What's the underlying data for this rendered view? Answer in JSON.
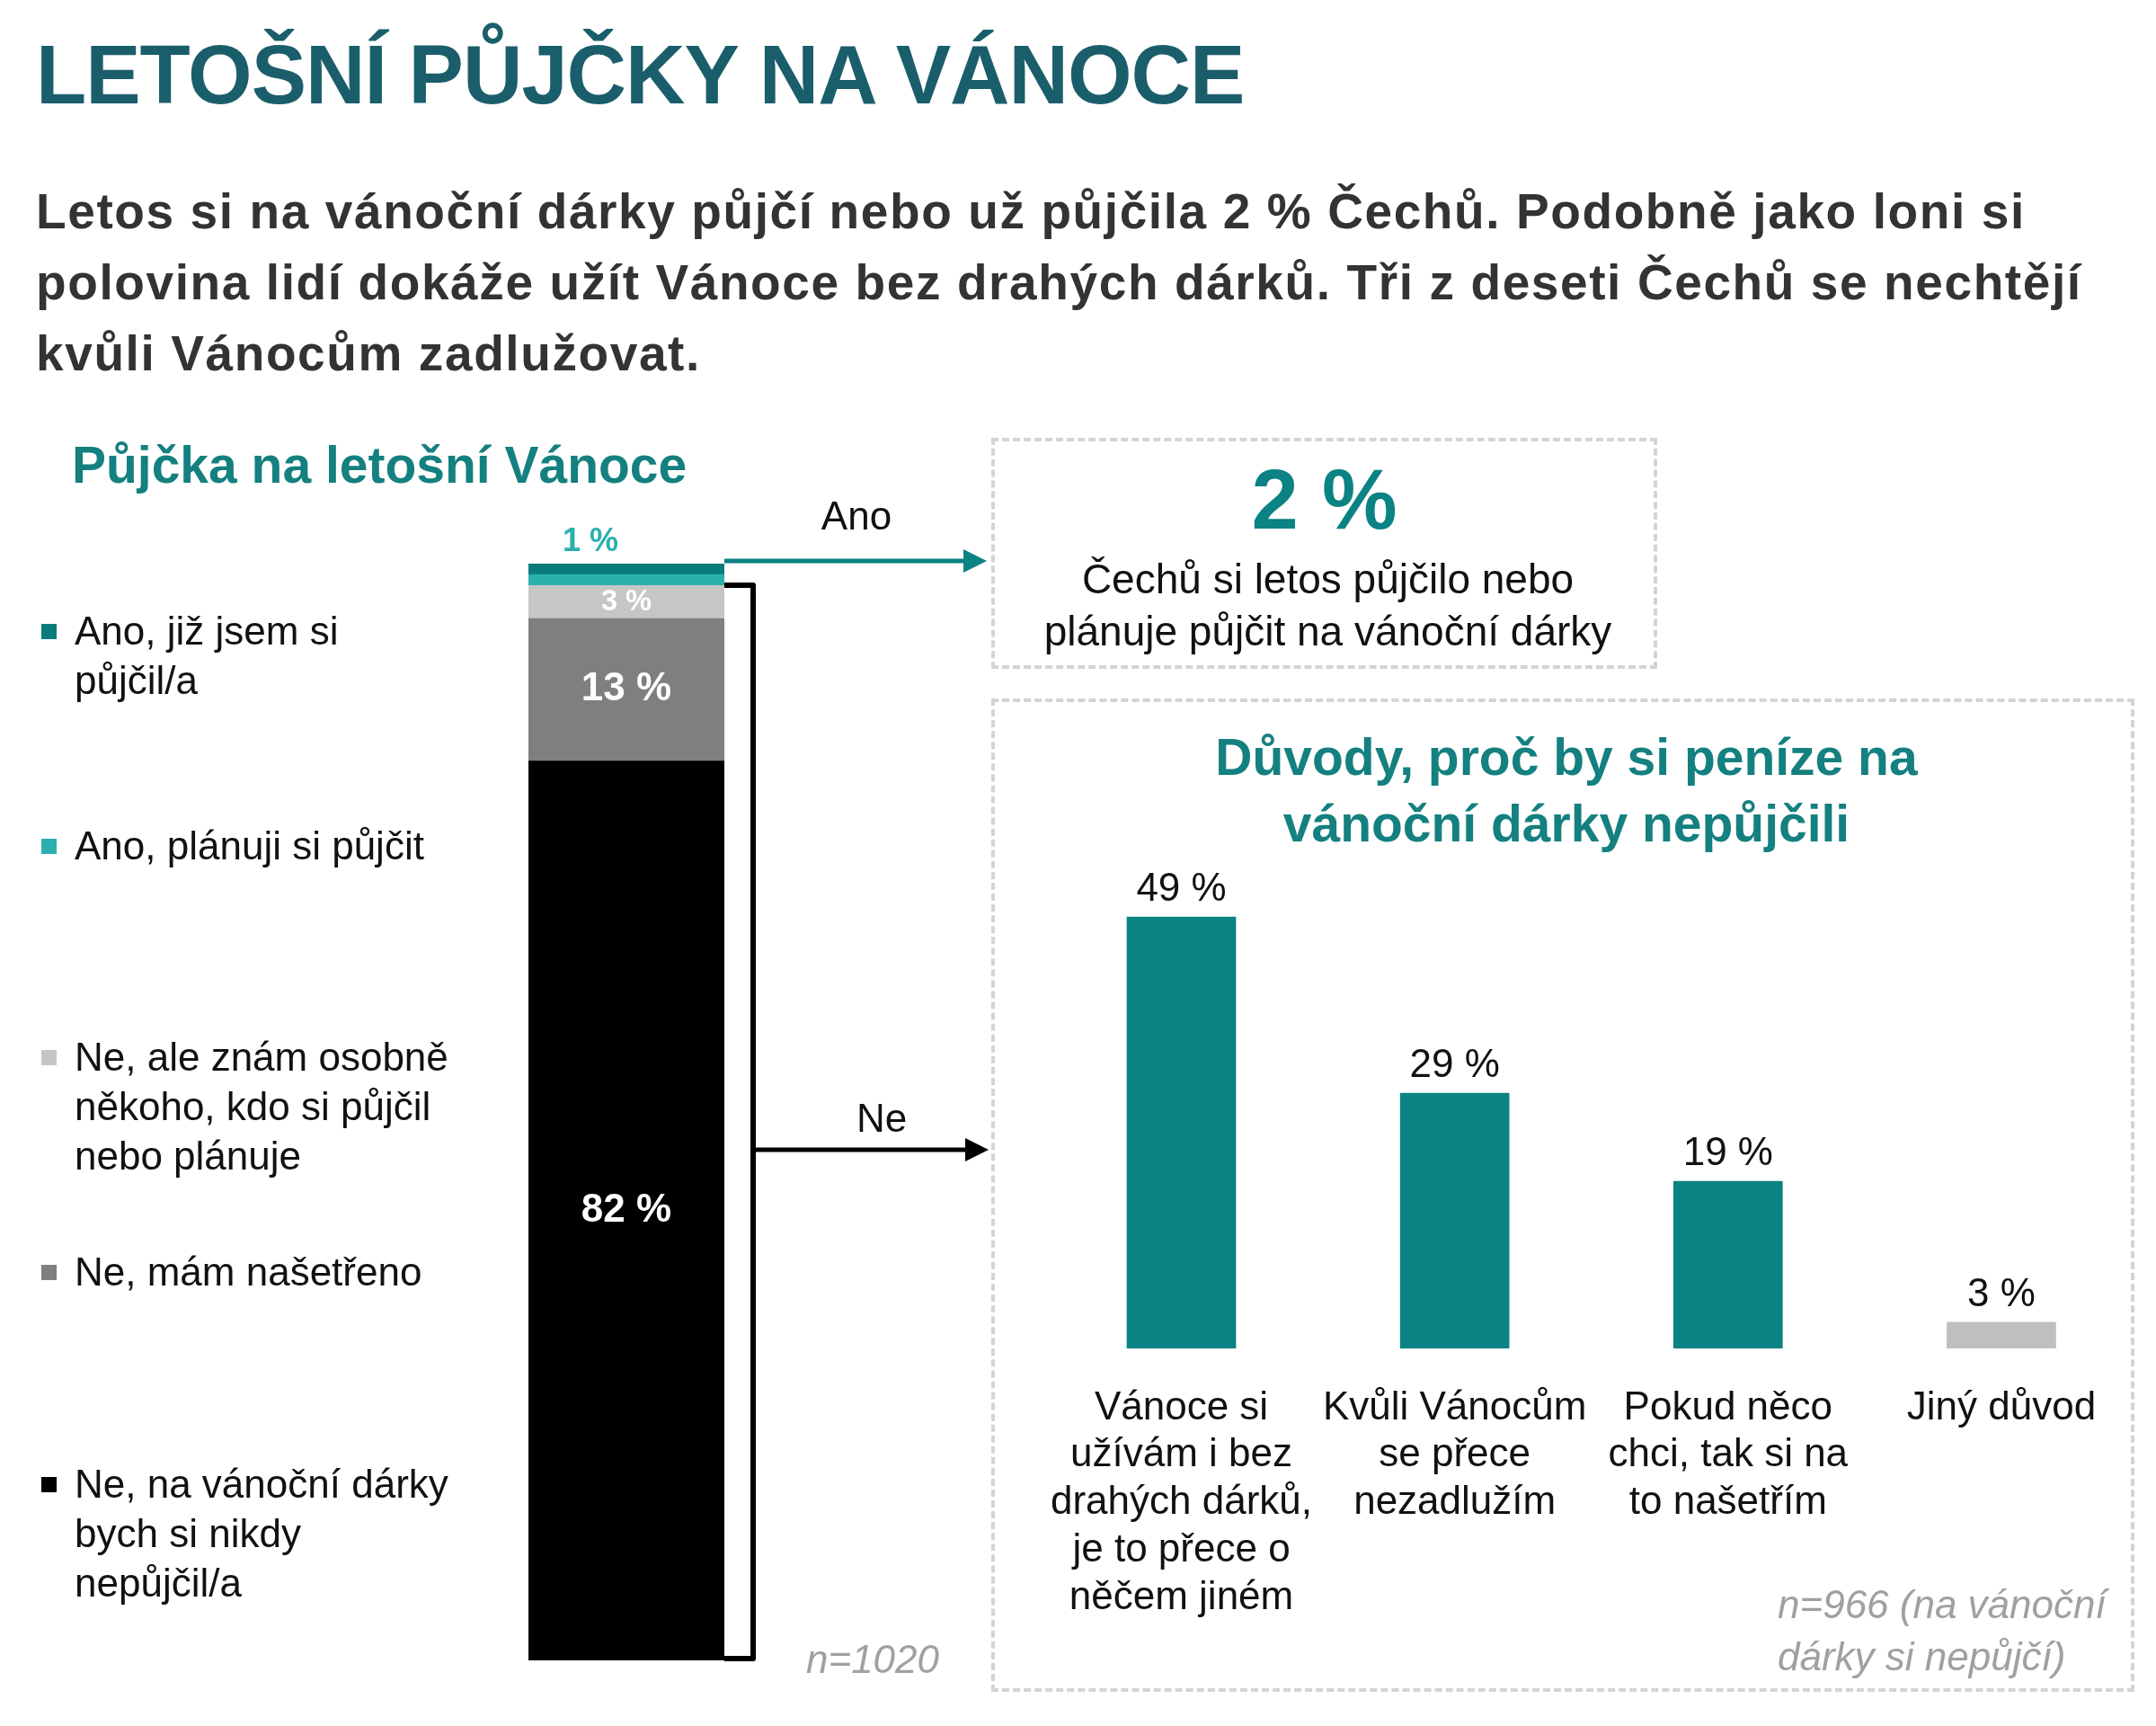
{
  "chart_data": [
    {
      "type": "other",
      "title": "LETOŠNÍ PŮJČKY NA VÁNOCE",
      "subtitle": "Letos si na vánoční dárky půjčí nebo už půjčila 2 % Čechů. Podobně jako loni si polovina lidí dokáže užít Vánoce bez drahých dárků. Tři z deseti Čechů se nechtějí kvůli Vánocům zadlužovat."
    },
    {
      "type": "bar",
      "title": "Půjčka na letošní Vánoce",
      "categories": [
        null
      ],
      "stacked": true,
      "legend": "left",
      "ylim": [
        0,
        100
      ],
      "tick_labels": false,
      "series": [
        {
          "name": "Ne, na vánoční dárky bych si nikdy nepůjčil/a",
          "color": "#000000",
          "values": [
            82
          ],
          "value_labels": [
            "82 %"
          ]
        },
        {
          "name": "Ne, mám našetřeno",
          "color": "#7f7f7f",
          "values": [
            13
          ],
          "value_labels": [
            "13 %"
          ]
        },
        {
          "name": "Ne, ale znám osobně někoho, kdo si půjčil nebo plánuje",
          "color": "#c6c6c6",
          "values": [
            3
          ],
          "value_labels": [
            "3 %"
          ]
        },
        {
          "name": "Ano, plánuji si půjčit",
          "color": "#2ab1ae",
          "values": [
            1
          ],
          "value_labels": [
            "1 %"
          ]
        },
        {
          "name": "Ano, již jsem si půjčil/a",
          "color": "#0a7c7e",
          "values": [
            1
          ],
          "value_labels": [
            null
          ]
        }
      ],
      "annotations": [
        "Ano",
        "Ne",
        "n=1020"
      ]
    },
    {
      "type": "other",
      "title": "2 %",
      "subtitle": "Čechů si letos půjčilo nebo plánuje půjčit na vánoční dárky"
    },
    {
      "type": "bar",
      "title": "Důvody, proč by si peníze na vánoční dárky nepůjčili",
      "categories": [
        "Vánoce si užívám i bez drahých dárků, je to přece o něčem jiném",
        "Kvůli Vánocům se přece nezadlužím",
        "Pokud něco chci, tak si na to našetřím",
        "Jiný důvod"
      ],
      "values": [
        49,
        29,
        19,
        3
      ],
      "colors": [
        "#0b8284",
        "#0b8284",
        "#0b8284",
        "#bfbfbf"
      ],
      "value_labels": [
        "49 %",
        "29 %",
        "19 %",
        "3 %"
      ],
      "tick_labels": "x",
      "annotations": [
        "n=966 (na vánoční dárky si nepůjčí)"
      ]
    }
  ]
}
